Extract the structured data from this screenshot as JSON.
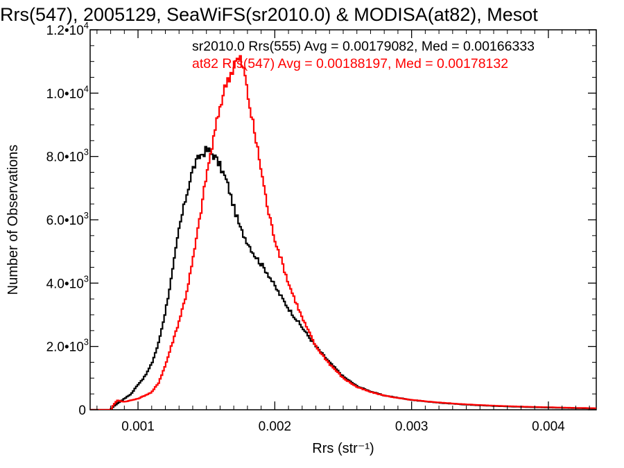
{
  "chart_data": {
    "type": "line",
    "title": "Rrs(547), 2005129, SeaWiFS(sr2010.0) & MODISA(at82), Mesot",
    "xlabel": "Rrs (str⁻¹)",
    "ylabel": "Number of Observations",
    "xlim": [
      0.00065,
      0.00435
    ],
    "ylim": [
      0,
      12000
    ],
    "grid": false,
    "x_ticks": [
      {
        "value": 0.001,
        "label": "0.001"
      },
      {
        "value": 0.002,
        "label": "0.002"
      },
      {
        "value": 0.003,
        "label": "0.003"
      },
      {
        "value": 0.004,
        "label": "0.004"
      }
    ],
    "y_ticks": [
      {
        "value": 0,
        "mantissa": "0",
        "exponent": ""
      },
      {
        "value": 2000,
        "mantissa": "2.0•10",
        "exponent": "3"
      },
      {
        "value": 4000,
        "mantissa": "4.0•10",
        "exponent": "3"
      },
      {
        "value": 6000,
        "mantissa": "6.0•10",
        "exponent": "3"
      },
      {
        "value": 8000,
        "mantissa": "8.0•10",
        "exponent": "3"
      },
      {
        "value": 10000,
        "mantissa": "1.0•10",
        "exponent": "4"
      },
      {
        "value": 12000,
        "mantissa": "1.2•10",
        "exponent": "4"
      }
    ],
    "annotations": [
      {
        "text": "sr2010.0 Rrs(555) Avg = 0.00179082, Med = 0.00166333",
        "color": "#000000"
      },
      {
        "text": "at82 Rrs(547) Avg = 0.00188197, Med = 0.00178132",
        "color": "#ff0000"
      }
    ],
    "series": [
      {
        "color": "#000000",
        "x": [
          0.00065,
          0.00075,
          0.0008,
          0.00082,
          0.00085,
          0.0009,
          0.00095,
          0.001,
          0.00105,
          0.0011,
          0.00115,
          0.0012,
          0.00125,
          0.0013,
          0.00135,
          0.0014,
          0.00145,
          0.0015,
          0.00153,
          0.00156,
          0.0016,
          0.00165,
          0.0017,
          0.00175,
          0.0018,
          0.00185,
          0.0019,
          0.00195,
          0.002,
          0.0021,
          0.0022,
          0.0023,
          0.0024,
          0.0025,
          0.0026,
          0.0027,
          0.0028,
          0.0029,
          0.003,
          0.0032,
          0.0034,
          0.0036,
          0.0038,
          0.004,
          0.0042,
          0.00435
        ],
        "y": [
          0,
          0,
          0,
          100,
          200,
          350,
          500,
          800,
          1050,
          1450,
          2100,
          3100,
          4300,
          5700,
          6700,
          7600,
          8000,
          8200,
          8150,
          8000,
          7700,
          7200,
          6400,
          5700,
          5300,
          4900,
          4600,
          4300,
          3900,
          3200,
          2600,
          2000,
          1500,
          1050,
          750,
          580,
          450,
          380,
          310,
          220,
          160,
          120,
          90,
          70,
          50,
          40
        ]
      },
      {
        "color": "#ff0000",
        "x": [
          0.00065,
          0.00075,
          0.0008,
          0.00082,
          0.00085,
          0.0009,
          0.00095,
          0.001,
          0.00105,
          0.0011,
          0.00115,
          0.0012,
          0.00125,
          0.0013,
          0.00135,
          0.0014,
          0.00145,
          0.0015,
          0.00155,
          0.0016,
          0.00165,
          0.0017,
          0.00172,
          0.00175,
          0.00178,
          0.0018,
          0.00185,
          0.0019,
          0.00195,
          0.002,
          0.0021,
          0.0022,
          0.0023,
          0.0024,
          0.0025,
          0.0026,
          0.0027,
          0.0028,
          0.0029,
          0.003,
          0.0032,
          0.0034,
          0.0036,
          0.0038,
          0.004,
          0.0042,
          0.00435
        ],
        "y": [
          0,
          0,
          0,
          150,
          300,
          250,
          300,
          350,
          450,
          550,
          850,
          1400,
          2100,
          2800,
          3600,
          4700,
          6000,
          7400,
          8500,
          9600,
          10400,
          10800,
          11050,
          11050,
          10600,
          10000,
          8800,
          7600,
          6300,
          5400,
          4000,
          2900,
          2000,
          1450,
          1000,
          720,
          560,
          450,
          370,
          310,
          230,
          170,
          130,
          100,
          80,
          60,
          50
        ]
      }
    ]
  }
}
